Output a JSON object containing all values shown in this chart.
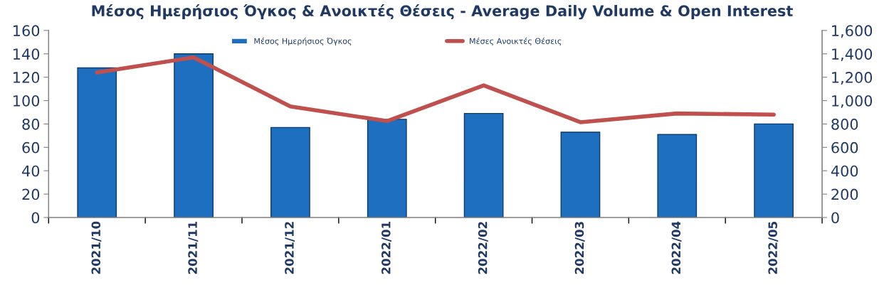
{
  "chart_data": {
    "type": "bar",
    "title": "Μέσος Ημερήσιος Όγκος & Ανοικτές Θέσεις - Average Daily Volume & Open Interest",
    "categories": [
      "2021/10",
      "2021/11",
      "2021/12",
      "2022/01",
      "2022/02",
      "2022/03",
      "2022/04",
      "2022/05"
    ],
    "series": [
      {
        "name": "Μέσος Ημερήσιος Όγκος",
        "color": "#1f6fc0",
        "values": [
          128,
          140,
          77,
          84,
          89,
          73,
          71,
          80
        ]
      },
      {
        "name": "Μέσες Ανοικτές Θέσεις",
        "type": "line",
        "axis": "y2",
        "color": "#c0504d",
        "values": [
          1240,
          1370,
          950,
          825,
          1130,
          815,
          890,
          880
        ]
      }
    ],
    "ylim": [
      0,
      160
    ],
    "yticks": [
      0,
      20,
      40,
      60,
      80,
      100,
      120,
      140,
      160
    ],
    "y2lim": [
      0,
      1600
    ],
    "y2ticks": [
      0,
      {
        "value": 200,
        "label": "200"
      },
      {
        "value": 400,
        "label": "400"
      },
      {
        "value": 600,
        "label": "600"
      },
      {
        "value": 800,
        "label": "800"
      },
      {
        "value": 1000,
        "label": "1,000"
      },
      {
        "value": 1200,
        "label": "1,200"
      },
      {
        "value": 1400,
        "label": "1,400"
      },
      {
        "value": 1600,
        "label": "1,600"
      }
    ],
    "grid": false,
    "legend": "top",
    "marker": "none",
    "line_style": "solid"
  }
}
